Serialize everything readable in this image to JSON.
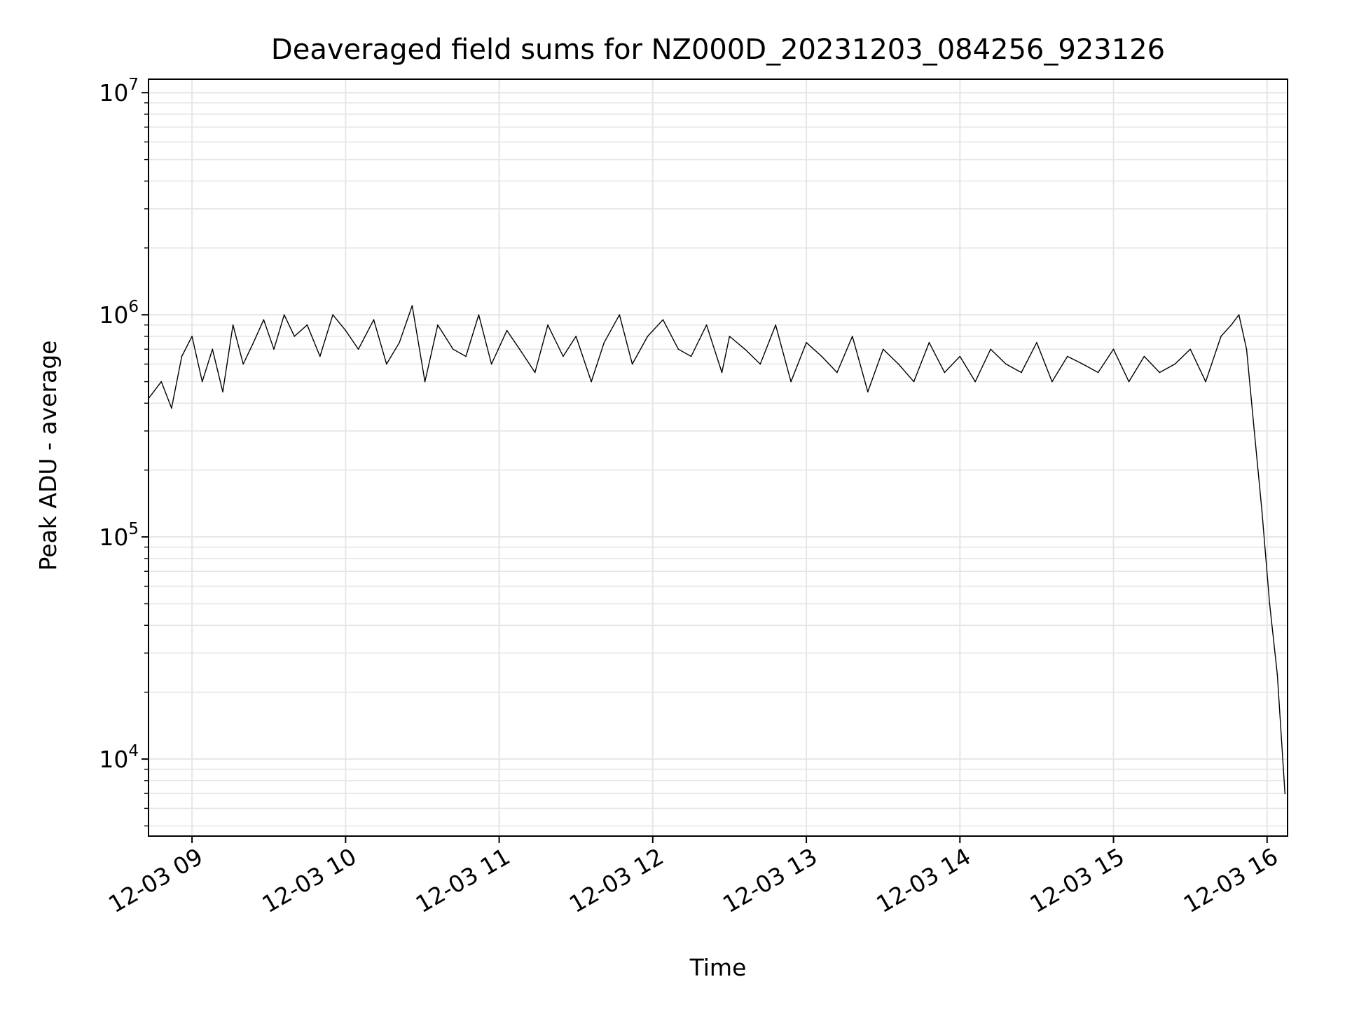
{
  "chart_data": {
    "type": "line",
    "title": "Deaveraged field sums for NZ000D_20231203_084256_923126",
    "xlabel": "Time",
    "ylabel": "Peak ADU - average",
    "yscale": "log",
    "ylim": [
      4500,
      11500000
    ],
    "xlim": [
      "2023-12-03 08:43",
      "2023-12-03 16:08"
    ],
    "grid": true,
    "line_color": "#000000",
    "grid_color": "#e6e6e6",
    "x_ticks": [
      "2023-12-03 09:00",
      "2023-12-03 10:00",
      "2023-12-03 11:00",
      "2023-12-03 12:00",
      "2023-12-03 13:00",
      "2023-12-03 14:00",
      "2023-12-03 15:00",
      "2023-12-03 16:00"
    ],
    "x_tick_labels": [
      "12-03 09",
      "12-03 10",
      "12-03 11",
      "12-03 12",
      "12-03 13",
      "12-03 14",
      "12-03 15",
      "12-03 16"
    ],
    "y_ticks": [
      10000,
      100000,
      1000000,
      10000000
    ],
    "y_tick_labels": [
      {
        "base": "10",
        "exp": "4"
      },
      {
        "base": "10",
        "exp": "5"
      },
      {
        "base": "10",
        "exp": "6"
      },
      {
        "base": "10",
        "exp": "7"
      }
    ],
    "series": [
      {
        "x": [
          "2023-12-03 08:43",
          "2023-12-03 08:48",
          "2023-12-03 08:52",
          "2023-12-03 08:56",
          "2023-12-03 09:00",
          "2023-12-03 09:04",
          "2023-12-03 09:08",
          "2023-12-03 09:12",
          "2023-12-03 09:16",
          "2023-12-03 09:20",
          "2023-12-03 09:24",
          "2023-12-03 09:28",
          "2023-12-03 09:32",
          "2023-12-03 09:36",
          "2023-12-03 09:40",
          "2023-12-03 09:45",
          "2023-12-03 09:50",
          "2023-12-03 09:55",
          "2023-12-03 10:00",
          "2023-12-03 10:05",
          "2023-12-03 10:11",
          "2023-12-03 10:16",
          "2023-12-03 10:21",
          "2023-12-03 10:26",
          "2023-12-03 10:31",
          "2023-12-03 10:36",
          "2023-12-03 10:42",
          "2023-12-03 10:47",
          "2023-12-03 10:52",
          "2023-12-03 10:57",
          "2023-12-03 11:03",
          "2023-12-03 11:08",
          "2023-12-03 11:14",
          "2023-12-03 11:19",
          "2023-12-03 11:25",
          "2023-12-03 11:30",
          "2023-12-03 11:36",
          "2023-12-03 11:41",
          "2023-12-03 11:47",
          "2023-12-03 11:52",
          "2023-12-03 11:58",
          "2023-12-03 12:04",
          "2023-12-03 12:10",
          "2023-12-03 12:15",
          "2023-12-03 12:21",
          "2023-12-03 12:27",
          "2023-12-03 12:30",
          "2023-12-03 12:36",
          "2023-12-03 12:42",
          "2023-12-03 12:48",
          "2023-12-03 12:54",
          "2023-12-03 13:00",
          "2023-12-03 13:06",
          "2023-12-03 13:12",
          "2023-12-03 13:18",
          "2023-12-03 13:24",
          "2023-12-03 13:30",
          "2023-12-03 13:36",
          "2023-12-03 13:42",
          "2023-12-03 13:48",
          "2023-12-03 13:54",
          "2023-12-03 14:00",
          "2023-12-03 14:06",
          "2023-12-03 14:12",
          "2023-12-03 14:18",
          "2023-12-03 14:24",
          "2023-12-03 14:30",
          "2023-12-03 14:36",
          "2023-12-03 14:42",
          "2023-12-03 14:48",
          "2023-12-03 14:54",
          "2023-12-03 15:00",
          "2023-12-03 15:06",
          "2023-12-03 15:12",
          "2023-12-03 15:18",
          "2023-12-03 15:24",
          "2023-12-03 15:30",
          "2023-12-03 15:36",
          "2023-12-03 15:42",
          "2023-12-03 15:46",
          "2023-12-03 15:49",
          "2023-12-03 15:52",
          "2023-12-03 15:55",
          "2023-12-03 15:58",
          "2023-12-03 16:01",
          "2023-12-03 16:04",
          "2023-12-03 16:07"
        ],
        "y": [
          420000,
          500000,
          380000,
          650000,
          800000,
          500000,
          700000,
          450000,
          900000,
          600000,
          750000,
          950000,
          700000,
          1000000,
          800000,
          900000,
          650000,
          1000000,
          850000,
          700000,
          950000,
          600000,
          750000,
          1100000,
          500000,
          900000,
          700000,
          650000,
          1000000,
          600000,
          850000,
          700000,
          550000,
          900000,
          650000,
          800000,
          500000,
          750000,
          1000000,
          600000,
          800000,
          950000,
          700000,
          650000,
          900000,
          550000,
          800000,
          700000,
          600000,
          900000,
          500000,
          750000,
          650000,
          550000,
          800000,
          450000,
          700000,
          600000,
          500000,
          750000,
          550000,
          650000,
          500000,
          700000,
          600000,
          550000,
          750000,
          500000,
          650000,
          600000,
          550000,
          700000,
          500000,
          650000,
          550000,
          600000,
          700000,
          500000,
          800000,
          900000,
          1000000,
          700000,
          300000,
          130000,
          50000,
          24000,
          7000
        ]
      }
    ]
  }
}
